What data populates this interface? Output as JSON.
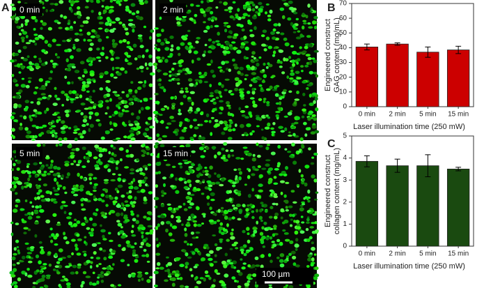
{
  "panel_letters": [
    "A",
    "B",
    "C"
  ],
  "image_panels": {
    "panels": [
      {
        "label": "0 min"
      },
      {
        "label": "2 min"
      },
      {
        "label": "5 min"
      },
      {
        "label": "15 min"
      }
    ],
    "scale_bar": "100 µm"
  },
  "chart_data": [
    {
      "type": "bar",
      "ylabel": [
        "Engineered construct",
        "GAG content (mg/mL)"
      ],
      "xlabel": "Laser illumination time (250 mW)",
      "categories": [
        "0 min",
        "2 min",
        "5 min",
        "15 min"
      ],
      "values": [
        40.5,
        42.5,
        37,
        38.5
      ],
      "errors": [
        2,
        0.8,
        3.5,
        2.5
      ],
      "color": "#cc0000",
      "ylim": [
        0,
        70
      ],
      "yticks": [
        0,
        10,
        20,
        30,
        40,
        50,
        60,
        70
      ]
    },
    {
      "type": "bar",
      "ylabel": [
        "Engineered construct",
        "collagen content (mg/mL)"
      ],
      "xlabel": "Laser illumination time (250 mW)",
      "categories": [
        "0 min",
        "2 min",
        "5 min",
        "15 min"
      ],
      "values": [
        3.85,
        3.65,
        3.65,
        3.5
      ],
      "errors": [
        0.25,
        0.3,
        0.5,
        0.08
      ],
      "color": "#1a4a10",
      "ylim": [
        0,
        5
      ],
      "yticks": [
        0,
        1,
        2,
        3,
        4,
        5
      ]
    }
  ]
}
